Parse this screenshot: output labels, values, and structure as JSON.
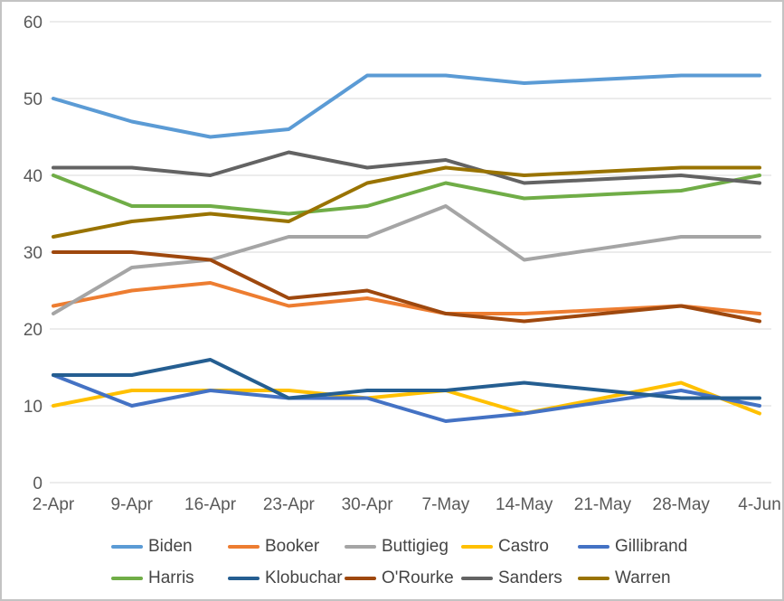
{
  "chart_data": {
    "type": "line",
    "title": "",
    "xlabel": "",
    "ylabel": "",
    "categories": [
      "2-Apr",
      "9-Apr",
      "16-Apr",
      "23-Apr",
      "30-Apr",
      "7-May",
      "14-May",
      "21-May",
      "28-May",
      "4-Jun"
    ],
    "y_tick_labels": [
      "0",
      "10",
      "20",
      "30",
      "40",
      "50",
      "60"
    ],
    "ylim": [
      0,
      60
    ],
    "ytick_step": 10,
    "grid": "horizontal-only",
    "gridline_color": "#d9d9d9",
    "axis_label_color": "#595959",
    "legend_label_color": "#454545",
    "legend_position": "bottom-two-rows",
    "legend_rows": [
      [
        "Biden",
        "Booker",
        "Buttigieg",
        "Castro",
        "Gillibrand"
      ],
      [
        "Harris",
        "Klobuchar",
        "O'Rourke",
        "Sanders",
        "Warren"
      ]
    ],
    "series": [
      {
        "name": "Biden",
        "color": "#5B9BD5",
        "values": [
          50,
          47,
          45,
          46,
          53,
          53,
          52,
          52.5,
          53,
          53
        ]
      },
      {
        "name": "Booker",
        "color": "#ED7D31",
        "values": [
          23,
          25,
          26,
          23,
          24,
          22,
          22,
          22.5,
          23,
          22
        ]
      },
      {
        "name": "Buttigieg",
        "color": "#A5A5A5",
        "values": [
          22,
          28,
          29,
          32,
          32,
          36,
          29,
          30.5,
          32,
          32
        ]
      },
      {
        "name": "Castro",
        "color": "#FFC000",
        "values": [
          10,
          12,
          12,
          12,
          11,
          12,
          9,
          11,
          13,
          9
        ]
      },
      {
        "name": "Gillibrand",
        "color": "#4472C4",
        "values": [
          14,
          10,
          12,
          11,
          11,
          8,
          9,
          10.5,
          12,
          10
        ]
      },
      {
        "name": "Harris",
        "color": "#70AD47",
        "values": [
          40,
          36,
          36,
          35,
          36,
          39,
          37,
          37.5,
          38,
          40
        ]
      },
      {
        "name": "Klobuchar",
        "color": "#255E91",
        "values": [
          14,
          14,
          16,
          11,
          12,
          12,
          13,
          12,
          11,
          11
        ]
      },
      {
        "name": "O'Rourke",
        "color": "#9E480E",
        "values": [
          30,
          30,
          29,
          24,
          25,
          22,
          21,
          22,
          23,
          21
        ]
      },
      {
        "name": "Sanders",
        "color": "#636363",
        "values": [
          41,
          41,
          40,
          43,
          41,
          42,
          39,
          39.5,
          40,
          39
        ]
      },
      {
        "name": "Warren",
        "color": "#997300",
        "values": [
          32,
          34,
          35,
          34,
          39,
          41,
          40,
          40.5,
          41,
          41
        ]
      }
    ]
  }
}
